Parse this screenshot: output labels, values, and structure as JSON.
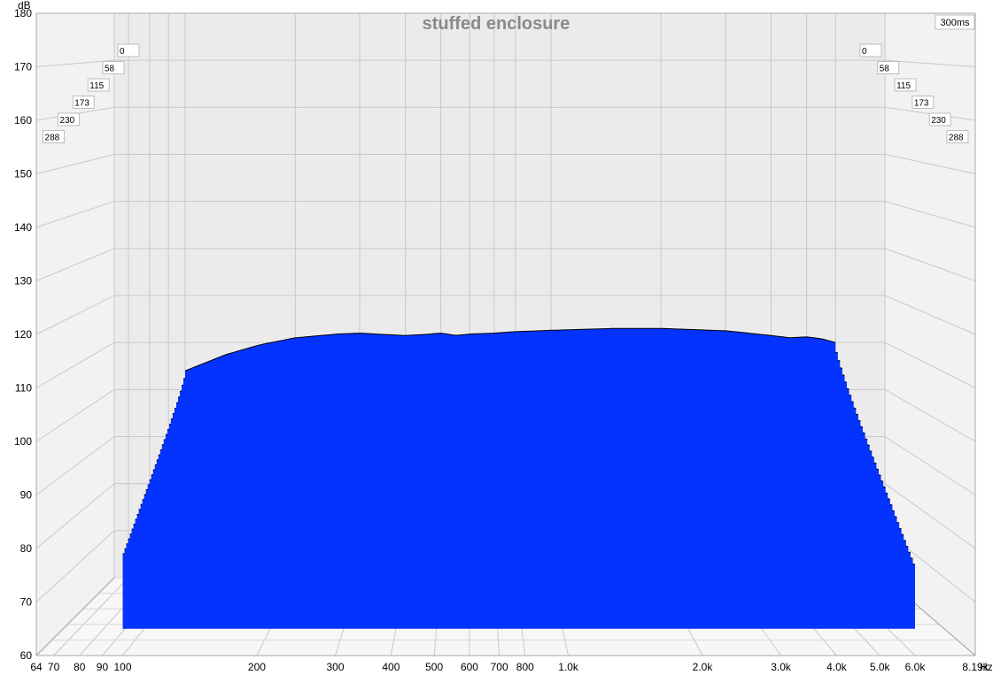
{
  "chart_data": {
    "type": "area",
    "title": "stuffed enclosure",
    "ylabel": "dB",
    "xlabel_unit": "Hz",
    "time_window": "300ms",
    "ylim": [
      60,
      180
    ],
    "y_ticks": [
      "180",
      "170",
      "160",
      "150",
      "140",
      "130",
      "120",
      "110",
      "100",
      "90",
      "80",
      "70",
      "60"
    ],
    "xlim": [
      64,
      8190
    ],
    "x_scale": "log",
    "x_ticks": [
      {
        "label": "64",
        "value": 64
      },
      {
        "label": "70",
        "value": 70
      },
      {
        "label": "80",
        "value": 80
      },
      {
        "label": "90",
        "value": 90
      },
      {
        "label": "100",
        "value": 100
      },
      {
        "label": "200",
        "value": 200
      },
      {
        "label": "300",
        "value": 300
      },
      {
        "label": "400",
        "value": 400
      },
      {
        "label": "500",
        "value": 500
      },
      {
        "label": "600",
        "value": 600
      },
      {
        "label": "700",
        "value": 700
      },
      {
        "label": "800",
        "value": 800
      },
      {
        "label": "1.0k",
        "value": 1000
      },
      {
        "label": "2.0k",
        "value": 2000
      },
      {
        "label": "3.0k",
        "value": 3000
      },
      {
        "label": "4.0k",
        "value": 4000
      },
      {
        "label": "5.0k",
        "value": 5000
      },
      {
        "label": "6.0k",
        "value": 6000
      },
      {
        "label": "8.19k",
        "value": 8190
      }
    ],
    "time_ticks_ms": [
      "0",
      "58",
      "115",
      "173",
      "230",
      "288"
    ],
    "time_range_ms": [
      0,
      300
    ],
    "front_slice": {
      "time_ms": 0,
      "freq_hz": [
        100,
        130,
        160,
        200,
        260,
        300,
        350,
        400,
        450,
        500,
        550,
        600,
        700,
        800,
        1000,
        1500,
        2000,
        3000,
        4000,
        4500,
        5000,
        5500,
        6000
      ],
      "db": [
        104,
        107.5,
        109.5,
        111,
        111.8,
        112,
        111.7,
        111.5,
        111.7,
        112,
        111.5,
        111.8,
        112,
        112.3,
        112.6,
        113,
        113,
        112.5,
        111.5,
        111,
        111.2,
        110.8,
        110
      ]
    },
    "back_slice": {
      "time_ms": 288,
      "freq_hz": [
        100,
        150,
        200,
        250,
        300,
        350,
        400,
        450,
        500,
        550,
        600,
        700,
        800,
        900,
        1000,
        1200,
        1500,
        2000,
        2500,
        3000,
        4000,
        5000,
        6000
      ],
      "db": [
        79,
        80.5,
        81.5,
        76,
        80,
        83.5,
        90,
        82,
        87.5,
        84,
        83,
        82,
        84.5,
        81,
        82,
        79.5,
        79.5,
        80,
        79,
        79,
        82.5,
        79,
        77
      ]
    },
    "series_color": "#0433ff",
    "slice_line_color": "#000000",
    "grid": true,
    "background": "#ebebeb"
  }
}
